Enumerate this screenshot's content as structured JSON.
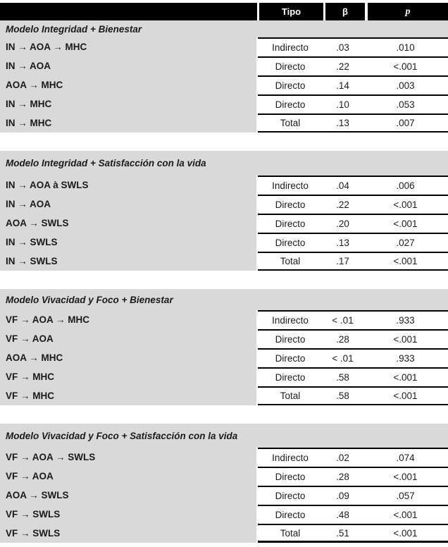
{
  "table": {
    "colors": {
      "header_bg": "#000000",
      "header_text": "#ffffff",
      "section_bg": "#d9d9d9",
      "border": "#000000"
    },
    "header": {
      "path": "",
      "tipo": "Tipo",
      "beta": "β",
      "p": "p"
    },
    "sections": [
      {
        "title": "Modelo Integridad + Bienestar",
        "rows": [
          {
            "path": "IN → AOA → MHC",
            "tipo": "Indirecto",
            "beta": ".03",
            "p": ".010"
          },
          {
            "path": "IN → AOA",
            "tipo": "Directo",
            "beta": ".22",
            "p": "<.001"
          },
          {
            "path": "AOA → MHC",
            "tipo": "Directo",
            "beta": ".14",
            "p": ".003"
          },
          {
            "path": "IN → MHC",
            "tipo": "Directo",
            "beta": ".10",
            "p": ".053"
          },
          {
            "path": "IN → MHC",
            "tipo": "Total",
            "beta": ".13",
            "p": ".007"
          }
        ]
      },
      {
        "title": "Modelo Integridad + Satisfacción con la vida",
        "rows": [
          {
            "path": "IN → AOA à SWLS",
            "tipo": "Indirecto",
            "beta": ".04",
            "p": ".006"
          },
          {
            "path": "IN → AOA",
            "tipo": "Directo",
            "beta": ".22",
            "p": "<.001"
          },
          {
            "path": "AOA → SWLS",
            "tipo": "Directo",
            "beta": ".20",
            "p": "<.001"
          },
          {
            "path": "IN → SWLS",
            "tipo": "Directo",
            "beta": ".13",
            "p": ".027"
          },
          {
            "path": "IN → SWLS",
            "tipo": "Total",
            "beta": ".17",
            "p": "<.001"
          }
        ]
      },
      {
        "title": "Modelo Vivacidad y Foco + Bienestar",
        "rows": [
          {
            "path": "VF → AOA → MHC",
            "tipo": "Indirecto",
            "beta": "< .01",
            "p": ".933"
          },
          {
            "path": "VF → AOA",
            "tipo": "Directo",
            "beta": ".28",
            "p": "<.001"
          },
          {
            "path": "AOA → MHC",
            "tipo": "Directo",
            "beta": "< .01",
            "p": ".933"
          },
          {
            "path": "VF → MHC",
            "tipo": "Directo",
            "beta": ".58",
            "p": "<.001"
          },
          {
            "path": "VF → MHC",
            "tipo": "Total",
            "beta": ".58",
            "p": "<.001"
          }
        ]
      },
      {
        "title": "Modelo Vivacidad y Foco + Satisfacción con la vida",
        "rows": [
          {
            "path": "VF → AOA → SWLS",
            "tipo": "Indirecto",
            "beta": ".02",
            "p": ".074"
          },
          {
            "path": "VF → AOA",
            "tipo": "Directo",
            "beta": ".28",
            "p": "<.001"
          },
          {
            "path": "AOA → SWLS",
            "tipo": "Directo",
            "beta": ".09",
            "p": ".057"
          },
          {
            "path": "VF → SWLS",
            "tipo": "Directo",
            "beta": ".48",
            "p": "<.001"
          },
          {
            "path": "VF → SWLS",
            "tipo": "Total",
            "beta": ".51",
            "p": "<.001"
          }
        ]
      }
    ]
  }
}
